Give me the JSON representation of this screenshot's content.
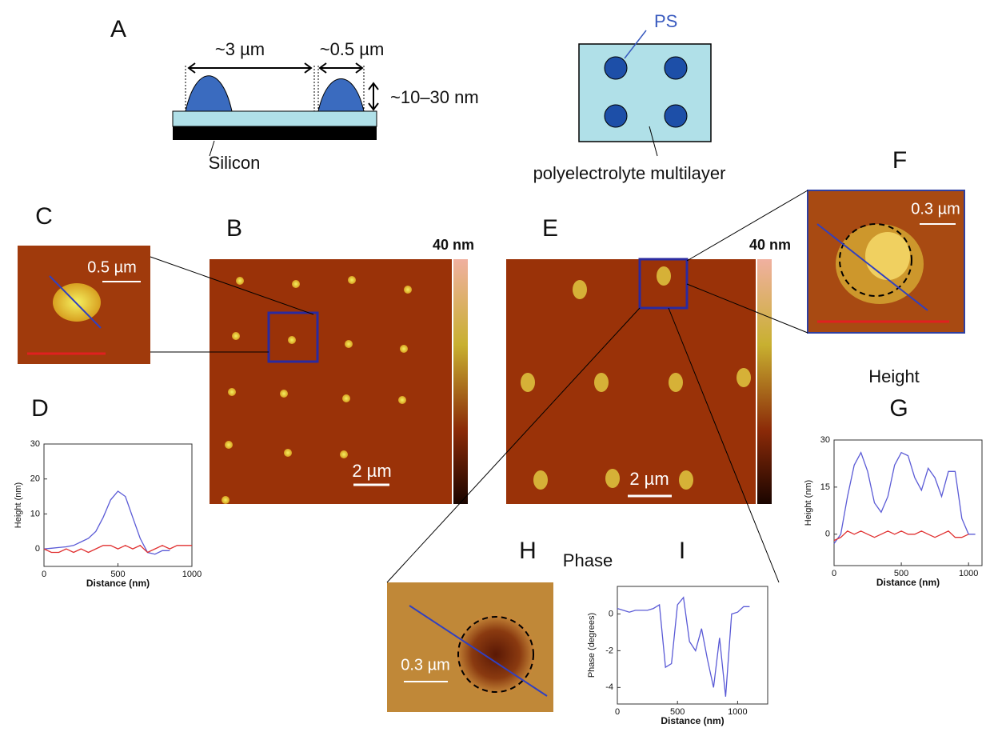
{
  "panels": {
    "A": "A",
    "B": "B",
    "C": "C",
    "D": "D",
    "E": "E",
    "F": "F",
    "G": "G",
    "H": "H",
    "I": "I"
  },
  "schematic": {
    "width_label": "~3 µm",
    "gap_label": "~0.5 µm",
    "height_label": "~10–30 nm",
    "substrate": "Silicon",
    "ps": "PS",
    "multilayer": "polyelectrolyte multilayer"
  },
  "images": {
    "b_colorbar": "40 nm",
    "b_scale": "2 µm",
    "e_colorbar": "40 nm",
    "e_scale": "2 µm",
    "c_scale": "0.5 µm",
    "f_scale": "0.3 µm",
    "h_scale": "0.3 µm",
    "height_title": "Height",
    "phase_title": "Phase"
  },
  "chart_data": [
    {
      "type": "line",
      "xlabel": "Distance (nm)",
      "ylabel": "Height (nm)",
      "x": [
        0,
        50,
        100,
        150,
        200,
        250,
        300,
        350,
        400,
        450,
        500,
        550,
        600,
        650,
        700,
        750,
        800,
        850,
        900,
        950,
        1000
      ],
      "series": [
        {
          "color": "#5b5bd6",
          "values": [
            0,
            0.2,
            0.4,
            0.6,
            1,
            2,
            3,
            5,
            9,
            14,
            16.5,
            15,
            9,
            3,
            -1,
            -1.5,
            -0.5,
            -0.5,
            null,
            null,
            null
          ]
        },
        {
          "color": "#e03030",
          "values": [
            0,
            -1,
            -1,
            0,
            -1,
            0,
            -1,
            0,
            1,
            1,
            0,
            1,
            0,
            1,
            -1,
            0,
            1,
            0,
            1,
            1,
            1
          ]
        }
      ],
      "xlim": [
        0,
        1000
      ],
      "ylim": [
        -5,
        30
      ],
      "xticks": [
        0,
        500,
        1000
      ],
      "yticks": [
        0,
        10,
        20,
        30
      ]
    },
    {
      "type": "line",
      "xlabel": "Distance (nm)",
      "ylabel": "Height (nm)",
      "x": [
        0,
        50,
        100,
        150,
        200,
        250,
        300,
        350,
        400,
        450,
        500,
        550,
        600,
        650,
        700,
        750,
        800,
        850,
        900,
        950,
        1000,
        1050
      ],
      "series": [
        {
          "color": "#5b5bd6",
          "values": [
            -3,
            0,
            12,
            22,
            26,
            20,
            10,
            7,
            12,
            22,
            26,
            25,
            18,
            14,
            21,
            18,
            12,
            20,
            20,
            5,
            0,
            0
          ]
        },
        {
          "color": "#e03030",
          "values": [
            -2,
            -1,
            1,
            0,
            1,
            0,
            -1,
            0,
            1,
            0,
            1,
            0,
            0,
            1,
            0,
            -1,
            0,
            1,
            -1,
            -1,
            0,
            null
          ]
        }
      ],
      "xlim": [
        0,
        1100
      ],
      "ylim": [
        -10,
        30
      ],
      "xticks": [
        0,
        500,
        1000
      ],
      "yticks": [
        0,
        15,
        30
      ]
    },
    {
      "type": "line",
      "xlabel": "Distance (nm)",
      "ylabel": "Phase (degrees)",
      "x": [
        0,
        50,
        100,
        150,
        200,
        250,
        300,
        350,
        400,
        450,
        500,
        550,
        600,
        650,
        700,
        750,
        800,
        850,
        900,
        950,
        1000,
        1050,
        1100
      ],
      "series": [
        {
          "color": "#5b5bd6",
          "values": [
            0.3,
            0.2,
            0.1,
            0.2,
            0.2,
            0.2,
            0.3,
            0.5,
            -2.9,
            -2.7,
            0.5,
            0.9,
            -1.5,
            -2,
            -0.8,
            -2.5,
            -4,
            -1.3,
            -4.5,
            0,
            0.1,
            0.4,
            0.4
          ]
        }
      ],
      "xlim": [
        0,
        1250
      ],
      "ylim": [
        -4.9,
        1.5
      ],
      "xticks": [
        0,
        500,
        1000
      ],
      "yticks": [
        -4,
        -2,
        0
      ]
    }
  ]
}
